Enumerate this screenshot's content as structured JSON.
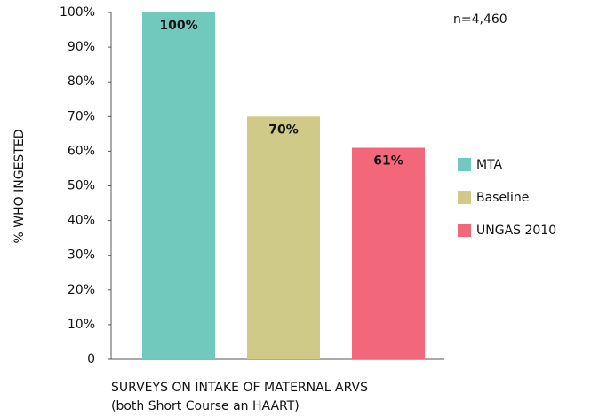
{
  "chart_data": {
    "type": "bar",
    "y_label": "% WHO INGESTED",
    "x_label_lines": [
      "SURVEYS ON INTAKE OF MATERNAL ARVS",
      "(both Short Course an HAART)"
    ],
    "annotation": "n=4,460",
    "categories": [
      "MTA",
      "Baseline",
      "UNGAS 2010"
    ],
    "values": [
      100,
      70,
      61
    ],
    "value_labels": [
      "100%",
      "70%",
      "61%"
    ],
    "colors": [
      "#71c9be",
      "#cfca88",
      "#f2687a"
    ],
    "ylim": [
      0,
      100
    ],
    "yticks": [
      0,
      {
        "value": 10,
        "label": "10%"
      },
      {
        "value": 20,
        "label": "20%"
      },
      {
        "value": 30,
        "label": "30%"
      },
      {
        "value": 40,
        "label": "40%"
      },
      {
        "value": 50,
        "label": "50%"
      },
      {
        "value": 60,
        "label": "60%"
      },
      {
        "value": 70,
        "label": "70%"
      },
      {
        "value": 80,
        "label": "80%"
      },
      {
        "value": 90,
        "label": "90%"
      },
      {
        "value": 100,
        "label": "100%"
      }
    ],
    "grid": false,
    "legend": "right"
  }
}
